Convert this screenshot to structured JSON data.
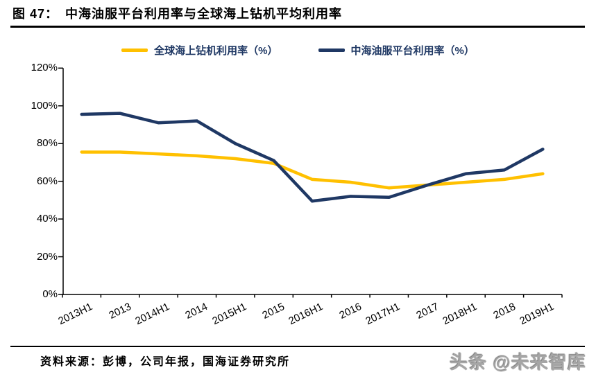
{
  "figure": {
    "label": "图 47：",
    "title": "中海油服平台利用率与全球海上钻机平均利用率"
  },
  "chart_data": {
    "type": "line",
    "title": "中海油服平台利用率与全球海上钻机平均利用率",
    "categories": [
      "2013H1",
      "2013",
      "2014H1",
      "2014",
      "2015H1",
      "2015",
      "2016H1",
      "2016",
      "2017H1",
      "2017",
      "2018H1",
      "2018",
      "2019H1"
    ],
    "series": [
      {
        "id": "global-offshore-rig-utilization",
        "name": "全球海上钻机利用率（%）",
        "color": "#FFC000",
        "values": [
          75.5,
          75.5,
          74.5,
          73.5,
          72,
          69.5,
          61,
          59.5,
          56.5,
          58,
          59.5,
          61,
          64
        ]
      },
      {
        "id": "cnooc-platform-utilization",
        "name": "中海油服平台利用率（%）",
        "color": "#1F3864",
        "values": [
          95.5,
          96,
          91,
          92,
          80,
          71,
          49.5,
          52,
          51.5,
          58,
          64,
          66,
          77
        ]
      }
    ],
    "ylim": [
      0,
      120
    ],
    "y_tick_labels": [
      "0%",
      "20%",
      "40%",
      "60%",
      "80%",
      "100%",
      "120%"
    ],
    "y_tick_step": 20,
    "grid": false,
    "legend_position": "top",
    "axis_color": "#000000"
  },
  "footer": {
    "source": "资料来源：彭博，公司年报，国海证券研究所",
    "watermark": "头条 @未来智库"
  }
}
